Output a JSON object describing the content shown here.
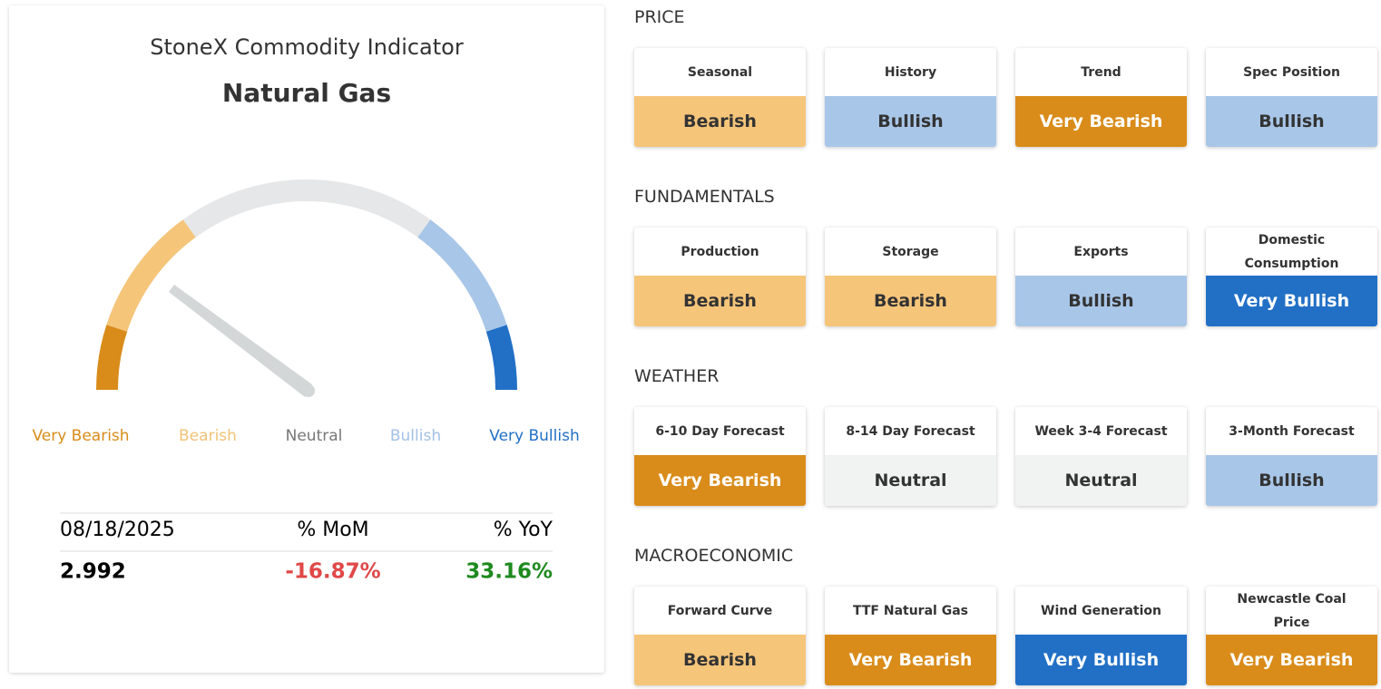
{
  "indicator": {
    "title": "StoneX Commodity Indicator",
    "subtitle": "Natural Gas",
    "levels": [
      {
        "label": "Very Bearish",
        "color": "#d98c1a",
        "label_color": "#d98c1a"
      },
      {
        "label": "Bearish",
        "color": "#f5c57a",
        "label_color": "#f2c276"
      },
      {
        "label": "Neutral",
        "color": "#e6e7e8",
        "label_color": "#777777"
      },
      {
        "label": "Bullish",
        "color": "#a8c6e8",
        "label_color": "#a3c1e4"
      },
      {
        "label": "Very Bullish",
        "color": "#2270c6",
        "label_color": "#2270c6"
      }
    ],
    "table": {
      "header": [
        "08/18/2025",
        "% MoM",
        "% YoY"
      ],
      "values": [
        "2.992",
        "-16.87%",
        "33.16%"
      ]
    }
  },
  "sections": [
    {
      "title": "PRICE",
      "cards": [
        {
          "label": "Seasonal",
          "status": "Bearish",
          "color": "#f5c57a"
        },
        {
          "label": "History",
          "status": "Bullish",
          "color": "#a8c6e8"
        },
        {
          "label": "Trend",
          "status": "Very Bearish",
          "color": "#d98c1a"
        },
        {
          "label": "Spec Position",
          "status": "Bullish",
          "color": "#a8c6e8"
        }
      ]
    },
    {
      "title": "FUNDAMENTALS",
      "cards": [
        {
          "label": "Production",
          "status": "Bearish",
          "color": "#f5c57a"
        },
        {
          "label": "Storage",
          "status": "Bearish",
          "color": "#f5c57a"
        },
        {
          "label": "Exports",
          "status": "Bullish",
          "color": "#a8c6e8"
        },
        {
          "label": "Domestic Consumption",
          "status": "Very Bullish",
          "color": "#2270c6"
        }
      ]
    },
    {
      "title": "WEATHER",
      "cards": [
        {
          "label": "6-10 Day Forecast",
          "status": "Very Bearish",
          "color": "#d98c1a"
        },
        {
          "label": "8-14 Day Forecast",
          "status": "Neutral",
          "color": "#f1f2f2"
        },
        {
          "label": "Week 3-4 Forecast",
          "status": "Neutral",
          "color": "#f1f2f2"
        },
        {
          "label": "3-Month Forecast",
          "status": "Bullish",
          "color": "#a8c6e8"
        }
      ]
    },
    {
      "title": "MACROECONOMIC",
      "cards": [
        {
          "label": "Forward Curve",
          "status": "Bearish",
          "color": "#f5c57a"
        },
        {
          "label": "TTF Natural Gas",
          "status": "Very Bearish",
          "color": "#d98c1a"
        },
        {
          "label": "Wind Generation",
          "status": "Very Bullish",
          "color": "#2270c6"
        },
        {
          "label": "Newcastle Coal Price",
          "status": "Very Bearish",
          "color": "#d98c1a"
        }
      ]
    }
  ]
}
